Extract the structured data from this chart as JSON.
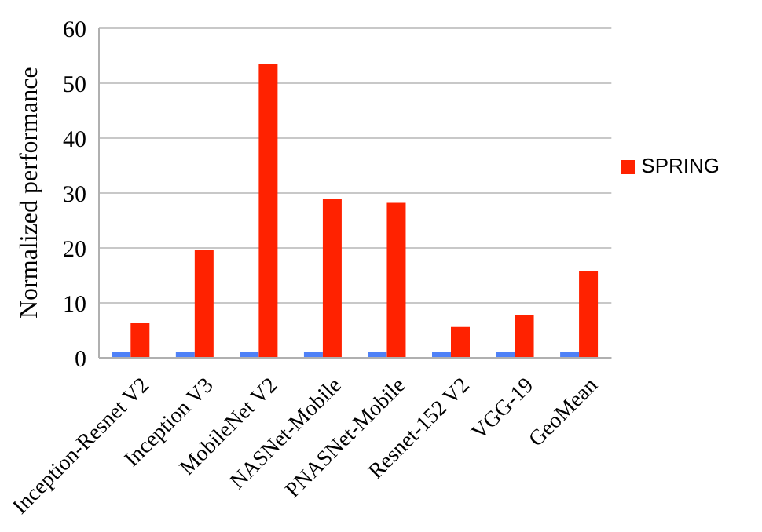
{
  "chart_data": {
    "type": "bar",
    "ylabel": "Normalized performance",
    "categories": [
      "Inception-Resnet V2",
      "Inception V3",
      "MobileNet V2",
      "NASNet-Mobile",
      "PNASNet-Mobile",
      "Resnet-152 V2",
      "VGG-19",
      "GeoMean"
    ],
    "series": [
      {
        "color": "#4f81f7",
        "values": [
          1,
          1,
          1,
          1,
          1,
          1,
          1,
          1
        ]
      },
      {
        "name": "SPRING",
        "color": "#ff2200",
        "values": [
          6.3,
          19.6,
          53.5,
          28.9,
          28.2,
          5.6,
          7.8,
          15.7
        ]
      }
    ],
    "ylim": [
      0,
      60
    ],
    "yticks": [
      0,
      10,
      20,
      30,
      40,
      50,
      60
    ],
    "grid": "y",
    "legend": "right"
  }
}
